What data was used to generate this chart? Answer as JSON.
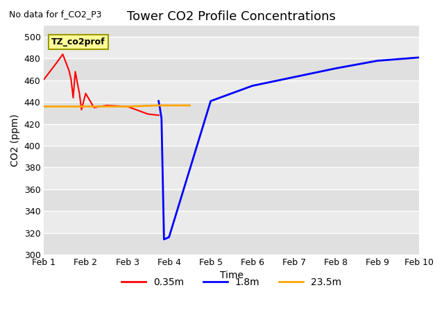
{
  "title": "Tower CO2 Profile Concentrations",
  "no_data_text": "No data for f_CO2_P3",
  "legend_label_text": "TZ_co2prof",
  "xlabel": "Time",
  "ylabel": "CO2 (ppm)",
  "ylim": [
    300,
    510
  ],
  "xlim_days": [
    1,
    10
  ],
  "yticks": [
    300,
    320,
    340,
    360,
    380,
    400,
    420,
    440,
    460,
    480,
    500
  ],
  "xtick_positions": [
    1,
    2,
    3,
    4,
    5,
    6,
    7,
    8,
    9,
    10
  ],
  "xtick_labels": [
    "Feb 1",
    "Feb 2",
    "Feb 3",
    "Feb 4",
    "Feb 5",
    "Feb 6",
    "Feb 7",
    "Feb 8",
    "Feb 9",
    "Feb 10"
  ],
  "bg_color_dark": "#e0e0e0",
  "bg_color_light": "#ebebeb",
  "fig_bg": "#ffffff",
  "red_line": {
    "x": [
      1.0,
      1.3,
      1.45,
      1.55,
      1.6,
      1.65,
      1.7,
      1.75,
      1.85,
      1.9,
      2.0,
      2.2,
      2.5,
      3.0,
      3.5,
      3.75
    ],
    "y": [
      461,
      476,
      484,
      474,
      469,
      461,
      444,
      468,
      448,
      433,
      448,
      435,
      437,
      436,
      429,
      428
    ],
    "color": "#ff0000",
    "label": "0.35m",
    "linewidth": 1.5
  },
  "blue_line": {
    "x": [
      3.75,
      3.78,
      3.82,
      3.85,
      3.88,
      4.0,
      5.0,
      6.0,
      7.0,
      8.0,
      9.0,
      10.0
    ],
    "y": [
      441,
      435,
      425,
      370,
      314,
      316,
      441,
      455,
      463,
      471,
      478,
      481
    ],
    "color": "#0000ff",
    "label": "1.8m",
    "linewidth": 2.0
  },
  "orange_line": {
    "x": [
      1.0,
      2.0,
      3.0,
      3.75,
      4.0,
      4.5
    ],
    "y": [
      436,
      436,
      436,
      437,
      437,
      437
    ],
    "color": "#ffa500",
    "label": "23.5m",
    "linewidth": 2.0
  }
}
